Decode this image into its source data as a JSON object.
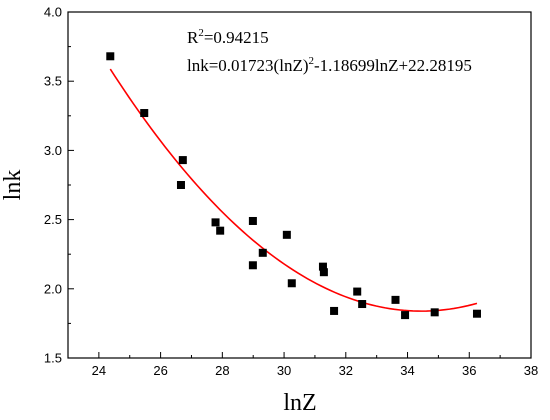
{
  "chart_data": {
    "type": "scatter",
    "xlabel": "lnZ",
    "ylabel": "lnk",
    "xlim": [
      23,
      38
    ],
    "ylim": [
      1.5,
      4.0
    ],
    "x_ticks": [
      "24",
      "26",
      "28",
      "30",
      "32",
      "34",
      "36",
      "38"
    ],
    "y_ticks": [
      "1.5",
      "2.0",
      "2.5",
      "3.0",
      "3.5",
      "4.0"
    ],
    "grid": false,
    "points": [
      {
        "x": 24.37,
        "y": 3.68
      },
      {
        "x": 25.47,
        "y": 3.27
      },
      {
        "x": 26.72,
        "y": 2.93
      },
      {
        "x": 26.66,
        "y": 2.75
      },
      {
        "x": 27.78,
        "y": 2.48
      },
      {
        "x": 27.93,
        "y": 2.42
      },
      {
        "x": 28.99,
        "y": 2.49
      },
      {
        "x": 28.99,
        "y": 2.17
      },
      {
        "x": 29.31,
        "y": 2.26
      },
      {
        "x": 30.09,
        "y": 2.39
      },
      {
        "x": 30.25,
        "y": 2.04
      },
      {
        "x": 31.26,
        "y": 2.16
      },
      {
        "x": 31.29,
        "y": 2.12
      },
      {
        "x": 31.62,
        "y": 1.84
      },
      {
        "x": 32.37,
        "y": 1.98
      },
      {
        "x": 32.53,
        "y": 1.89
      },
      {
        "x": 33.61,
        "y": 1.92
      },
      {
        "x": 33.92,
        "y": 1.81
      },
      {
        "x": 34.88,
        "y": 1.83
      },
      {
        "x": 36.25,
        "y": 1.82
      }
    ],
    "fit": {
      "a": 0.01723,
      "b": -1.18699,
      "c": 22.28195,
      "x_range": [
        24.37,
        36.25
      ],
      "color": "#ff0000"
    },
    "marker_color": "#000000",
    "annotation": {
      "r2_base": "R",
      "r2_sup": "2",
      "r2_value": "=0.94215",
      "eq_part1": "lnk=0.01723(lnZ)",
      "eq_sup": "2",
      "eq_part2": "-1.18699lnZ+22.28195"
    }
  }
}
